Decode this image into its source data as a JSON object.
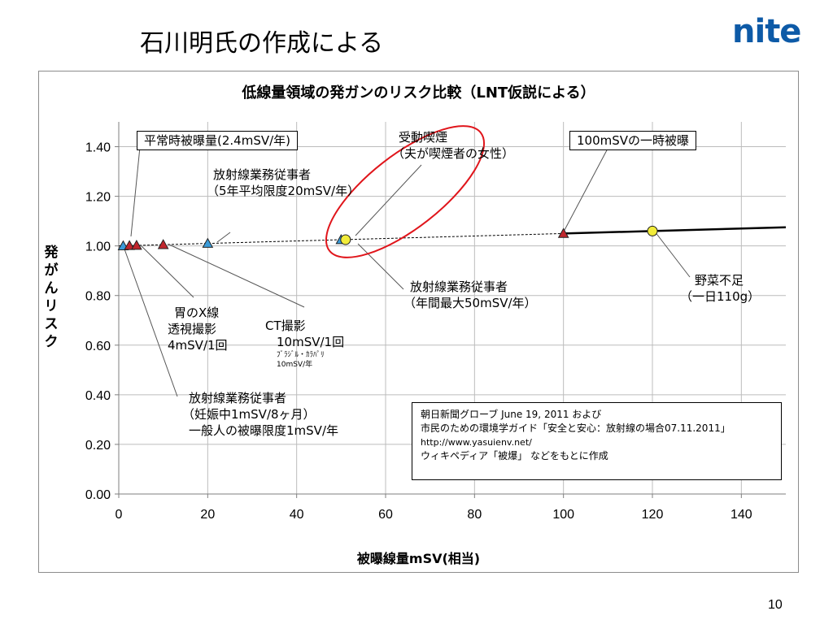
{
  "slide": {
    "title": "石川明氏の作成による",
    "logo": "nite",
    "page_number": "10",
    "accent_color": "#0d5aa7"
  },
  "chart_data": {
    "type": "line",
    "title": "低線量領域の発ガンのリスク比較（LNT仮説による）",
    "xlabel": "被曝線量mSV(相当)",
    "ylabel": "発がんリスク",
    "xlim": [
      0,
      150
    ],
    "ylim": [
      0,
      1.5
    ],
    "x_ticks": [
      0,
      20,
      40,
      60,
      80,
      100,
      120,
      140
    ],
    "y_ticks": [
      "0.00",
      "0.20",
      "0.40",
      "0.60",
      "0.80",
      "1.00",
      "1.20",
      "1.40"
    ],
    "grid": true,
    "series": [
      {
        "style": "dashed",
        "color": "#000000",
        "x": [
          0,
          100
        ],
        "y": [
          1.0,
          1.05
        ]
      },
      {
        "style": "solid",
        "color": "#000000",
        "x": [
          100,
          150
        ],
        "y": [
          1.05,
          1.075
        ]
      }
    ],
    "points": [
      {
        "x": 1,
        "y": 1.0,
        "marker": "triangle",
        "color": "#3a9bd9"
      },
      {
        "x": 2.4,
        "y": 1.001,
        "marker": "triangle",
        "color": "#c0262d"
      },
      {
        "x": 4,
        "y": 1.002,
        "marker": "triangle",
        "color": "#c0262d"
      },
      {
        "x": 10,
        "y": 1.005,
        "marker": "triangle",
        "color": "#c0262d"
      },
      {
        "x": 20,
        "y": 1.01,
        "marker": "triangle",
        "color": "#3a9bd9"
      },
      {
        "x": 50,
        "y": 1.025,
        "marker": "triangle",
        "color": "#3a9bd9"
      },
      {
        "x": 51,
        "y": 1.025,
        "marker": "circle",
        "color": "#f2ec3a"
      },
      {
        "x": 100,
        "y": 1.05,
        "marker": "triangle",
        "color": "#c0262d"
      },
      {
        "x": 120,
        "y": 1.06,
        "marker": "circle",
        "color": "#f2ec3a"
      }
    ],
    "annotations": {
      "normal_dose": "平常時被曝量(2.4mSV/年)",
      "worker_5yr_l1": "放射線業務従事者",
      "worker_5yr_l2": "（5年平均限度20mSV/年）",
      "passive_smoke_l1": "受動喫煙",
      "passive_smoke_l2": "（夫が喫煙者の女性）",
      "one_time_100": "100mSVの一時被曝",
      "worker_annual_l1": "放射線業務従事者",
      "worker_annual_l2": "（年間最大50mSV/年）",
      "vegetable_l1": "野菜不足",
      "vegetable_l2": "（一日110g）",
      "stomach_xray_l1": "胃のX線",
      "stomach_xray_l2": "透視撮影",
      "stomach_xray_l3": "4mSV/1回",
      "ct_l1": "CT撮影",
      "ct_l2": "10mSV/1回",
      "ct_l3": "ﾌﾞﾗｼﾞﾙ・ｶﾗﾊﾟﾘ",
      "ct_l4": "10mSV/年",
      "worker_preg_l1": "放射線業務従事者",
      "worker_preg_l2": "（妊娠中1mSV/8ヶ月）",
      "worker_preg_l3": "一般人の被曝限度1mSV/年"
    },
    "source": {
      "line1": "朝日新聞グローブ  June 19, 2011 および",
      "line2": "市民のための環境学ガイド「安全と安心：放射線の場合07.11.2011」",
      "line3": "http://www.yasuienv.net/",
      "line4": "ウィキペディア「被爆」 などをもとに作成"
    }
  }
}
